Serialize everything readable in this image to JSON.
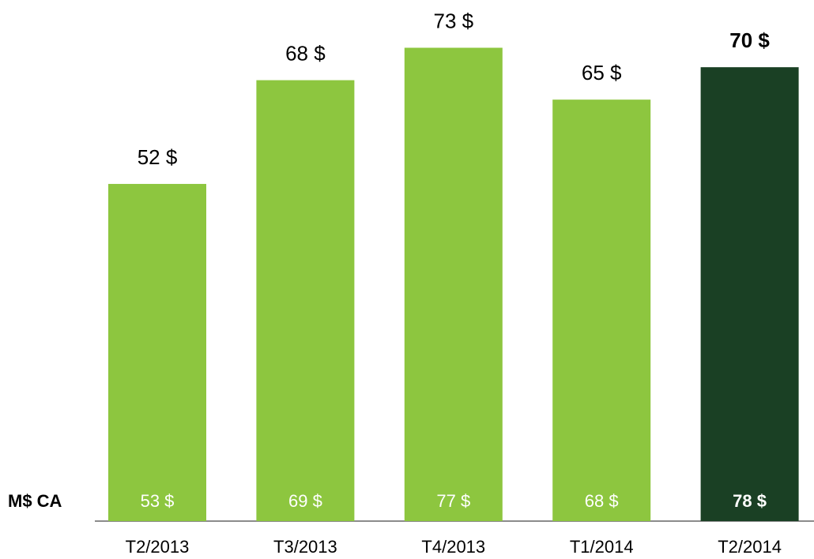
{
  "chart_data": {
    "type": "bar",
    "categories": [
      "T2/2013",
      "T3/2013",
      "T4/2013",
      "T1/2014",
      "T2/2014"
    ],
    "values": [
      52,
      68,
      73,
      65,
      70
    ],
    "value_labels": [
      "52 $",
      "68 $",
      "73 $",
      "65 $",
      "70 $"
    ],
    "secondary_label": "M$ CA",
    "secondary_values": [
      53,
      69,
      77,
      68,
      78
    ],
    "secondary_labels": [
      "53 $",
      "69 $",
      "77 $",
      "68 $",
      "78 $"
    ],
    "colors": [
      "#8dc63f",
      "#8dc63f",
      "#8dc63f",
      "#8dc63f",
      "#1a4024"
    ],
    "highlight_index": 4,
    "ylim": [
      0,
      80
    ]
  }
}
